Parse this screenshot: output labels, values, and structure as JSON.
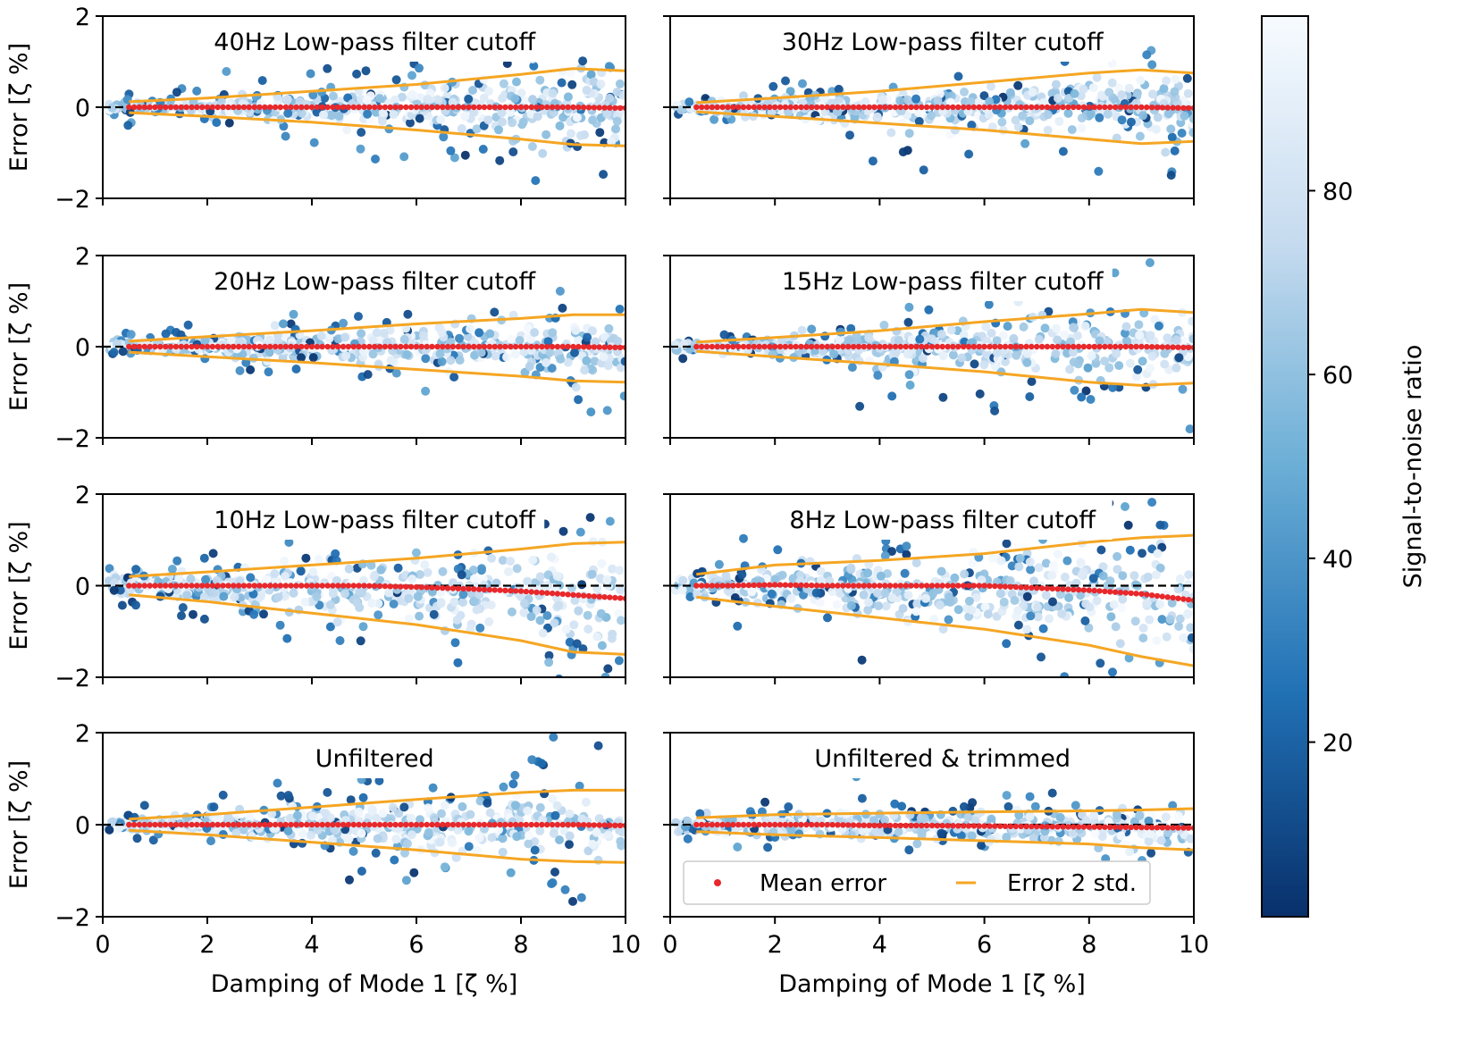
{
  "chart_data": {
    "type": "scatter",
    "layout": "4 rows x 2 columns of panels with shared colorbar",
    "xlabel": "Damping of Mode 1 [ζ %]",
    "ylabel": "Error [ζ %]",
    "xlim": [
      0,
      10
    ],
    "ylim": [
      -2,
      2
    ],
    "x_ticks": [
      "0",
      "2",
      "4",
      "6",
      "8",
      "10"
    ],
    "y_ticks": [
      "−2",
      "0",
      "2"
    ],
    "grid": false,
    "reference_line": {
      "y": 0,
      "style": "dashed",
      "color": "#000000"
    },
    "colorbar": {
      "label": "Signal-to-noise ratio",
      "range": [
        1,
        99
      ],
      "ticks": [
        "20",
        "40",
        "60",
        "80"
      ],
      "tick_values": [
        20,
        40,
        60,
        80
      ],
      "colormap": "Blues_r",
      "color_low": "#08306b",
      "color_high": "#f7fbff"
    },
    "legend": {
      "placement": "lower-center of bottom-right panel",
      "entries": [
        {
          "label": "Mean error",
          "marker": "dot",
          "color": "#e8282b"
        },
        {
          "label": "Error 2 std.",
          "marker": "line",
          "color": "#f5a623"
        }
      ]
    },
    "mean_error_x": [
      0.5,
      1,
      2,
      3,
      4,
      5,
      6,
      7,
      8,
      9,
      10
    ],
    "panels": [
      {
        "title": "40Hz Low-pass filter cutoff",
        "mean_error": [
          0,
          0,
          0,
          0,
          0,
          0,
          0,
          0,
          0,
          0,
          -0.02
        ],
        "std2_upper": {
          "x": [
            0.5,
            2,
            4,
            6,
            8,
            9,
            10
          ],
          "y": [
            0.12,
            0.2,
            0.35,
            0.5,
            0.72,
            0.85,
            0.8
          ]
        },
        "std2_lower": {
          "x": [
            0.5,
            2,
            4,
            6,
            8,
            9,
            10
          ],
          "y": [
            -0.12,
            -0.2,
            -0.33,
            -0.5,
            -0.7,
            -0.82,
            -0.85
          ]
        }
      },
      {
        "title": "30Hz Low-pass filter cutoff",
        "mean_error": [
          0,
          0,
          0,
          0,
          0,
          0,
          0,
          0,
          0,
          0,
          -0.02
        ],
        "std2_upper": {
          "x": [
            0.5,
            2,
            4,
            6,
            8,
            9,
            10
          ],
          "y": [
            0.1,
            0.2,
            0.35,
            0.55,
            0.75,
            0.82,
            0.75
          ]
        },
        "std2_lower": {
          "x": [
            0.5,
            2,
            4,
            6,
            8,
            9,
            10
          ],
          "y": [
            -0.1,
            -0.2,
            -0.35,
            -0.5,
            -0.7,
            -0.8,
            -0.75
          ]
        }
      },
      {
        "title": "20Hz Low-pass filter cutoff",
        "mean_error": [
          0,
          0,
          0,
          0,
          0,
          0,
          0,
          0,
          0,
          0,
          -0.02
        ],
        "std2_upper": {
          "x": [
            0.5,
            2,
            4,
            6,
            8,
            9,
            10
          ],
          "y": [
            0.12,
            0.22,
            0.35,
            0.5,
            0.62,
            0.7,
            0.7
          ]
        },
        "std2_lower": {
          "x": [
            0.5,
            2,
            4,
            6,
            8,
            9,
            10
          ],
          "y": [
            -0.12,
            -0.22,
            -0.35,
            -0.5,
            -0.65,
            -0.75,
            -0.78
          ]
        }
      },
      {
        "title": "15Hz Low-pass filter cutoff",
        "mean_error": [
          0,
          0,
          0,
          0,
          0,
          0,
          0,
          0,
          0,
          0,
          -0.02
        ],
        "std2_upper": {
          "x": [
            0.5,
            2,
            4,
            6,
            8,
            9,
            10
          ],
          "y": [
            0.1,
            0.2,
            0.35,
            0.55,
            0.72,
            0.82,
            0.75
          ]
        },
        "std2_lower": {
          "x": [
            0.5,
            2,
            4,
            6,
            8,
            9,
            10
          ],
          "y": [
            -0.1,
            -0.22,
            -0.38,
            -0.55,
            -0.78,
            -0.85,
            -0.8
          ]
        }
      },
      {
        "title": "10Hz Low-pass filter cutoff",
        "mean_error": [
          0,
          0,
          0,
          0,
          0,
          0,
          -0.03,
          -0.07,
          -0.12,
          -0.2,
          -0.28
        ],
        "std2_upper": {
          "x": [
            0.5,
            2,
            4,
            6,
            8,
            9,
            10
          ],
          "y": [
            0.2,
            0.3,
            0.45,
            0.6,
            0.8,
            0.92,
            0.95
          ]
        },
        "std2_lower": {
          "x": [
            0.5,
            2,
            4,
            6,
            8,
            9,
            10
          ],
          "y": [
            -0.2,
            -0.35,
            -0.6,
            -0.85,
            -1.2,
            -1.45,
            -1.5
          ]
        }
      },
      {
        "title": "8Hz Low-pass filter cutoff",
        "mean_error": [
          0,
          0,
          0.02,
          0,
          0,
          0,
          0,
          -0.05,
          -0.1,
          -0.18,
          -0.32
        ],
        "std2_upper": {
          "x": [
            0.5,
            2,
            4,
            6,
            8,
            9,
            10
          ],
          "y": [
            0.25,
            0.45,
            0.55,
            0.7,
            0.95,
            1.05,
            1.1
          ]
        },
        "std2_lower": {
          "x": [
            0.5,
            2,
            4,
            6,
            8,
            9,
            10
          ],
          "y": [
            -0.25,
            -0.45,
            -0.7,
            -0.95,
            -1.3,
            -1.55,
            -1.75
          ]
        }
      },
      {
        "title": "Unfiltered",
        "mean_error": [
          0,
          0,
          0,
          0,
          0,
          0,
          0,
          0,
          0,
          0,
          -0.02
        ],
        "std2_upper": {
          "x": [
            0.5,
            2,
            4,
            6,
            8,
            9,
            10
          ],
          "y": [
            0.12,
            0.22,
            0.38,
            0.55,
            0.7,
            0.75,
            0.75
          ]
        },
        "std2_lower": {
          "x": [
            0.5,
            2,
            4,
            6,
            8,
            9,
            10
          ],
          "y": [
            -0.12,
            -0.22,
            -0.38,
            -0.55,
            -0.75,
            -0.8,
            -0.82
          ]
        }
      },
      {
        "title": "Unfiltered & trimmed",
        "mean_error": [
          0,
          0,
          0,
          0,
          -0.02,
          -0.02,
          -0.03,
          -0.04,
          -0.05,
          -0.06,
          -0.07
        ],
        "std2_upper": {
          "x": [
            0.5,
            2,
            4,
            6,
            8,
            9,
            10
          ],
          "y": [
            0.15,
            0.22,
            0.25,
            0.28,
            0.3,
            0.32,
            0.35
          ]
        },
        "std2_lower": {
          "x": [
            0.5,
            2,
            4,
            6,
            8,
            9,
            10
          ],
          "y": [
            -0.15,
            -0.22,
            -0.28,
            -0.35,
            -0.42,
            -0.5,
            -0.55
          ]
        }
      }
    ]
  }
}
